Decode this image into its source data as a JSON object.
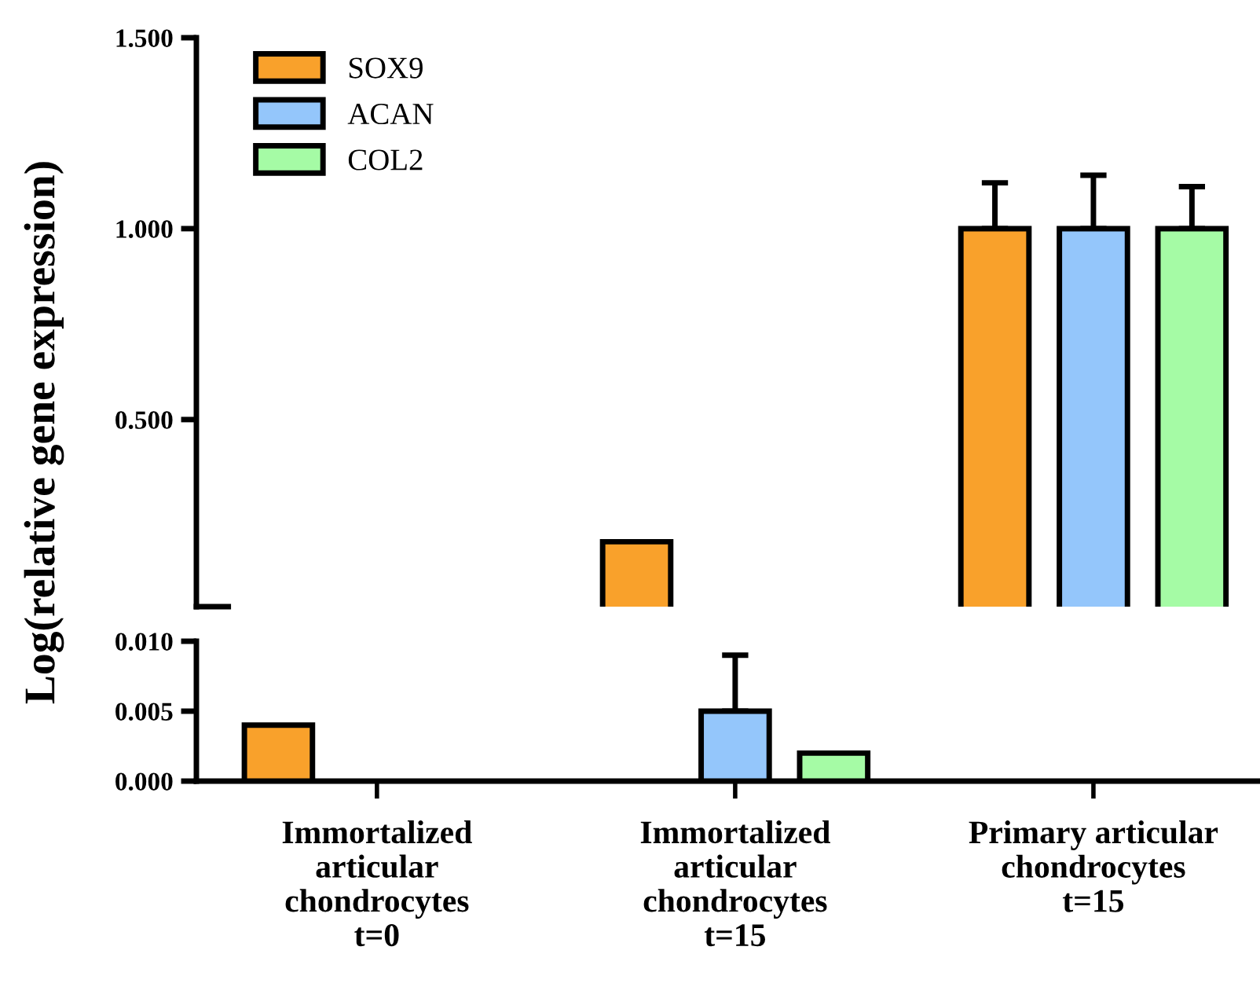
{
  "chart_data": [
    {
      "type": "bar",
      "categories": [
        "Immortalized\narticular\nchondrocytes\nt=0",
        "Immortalized\narticular\nchondrocytes\nt=15",
        "Primary articular\nchondrocytes\nt=15"
      ],
      "ylabel": "Log(relative gene expression)",
      "ylim": [
        0.01,
        1.5
      ],
      "yticks": [
        {
          "value": 0.5,
          "label": "0.500"
        },
        {
          "value": 1.0,
          "label": "1.000"
        },
        {
          "value": 1.5,
          "label": "1.500"
        }
      ],
      "tick_labels": "y",
      "legend": "top left",
      "grid": false,
      "series": [
        {
          "name": "SOX9",
          "color": "#f9a12b",
          "values": [
            null,
            0.18,
            1.0
          ],
          "errors": [
            null,
            null,
            [
              1.0,
              1.12
            ]
          ]
        },
        {
          "name": "ACAN",
          "color": "#94c6fb",
          "values": [
            null,
            null,
            1.0
          ],
          "errors": [
            null,
            null,
            [
              1.0,
              1.14
            ]
          ]
        },
        {
          "name": "COL2",
          "color": "#a5fba5",
          "values": [
            null,
            null,
            1.0
          ],
          "errors": [
            null,
            null,
            [
              1.0,
              1.11
            ]
          ]
        }
      ]
    },
    {
      "type": "bar",
      "categories": [
        null,
        null,
        null
      ],
      "ylim": [
        0,
        0.01
      ],
      "yticks": [
        {
          "value": 0,
          "label": "0.000"
        },
        {
          "value": 0.005,
          "label": "0.005"
        },
        {
          "value": 0.01,
          "label": "0.010"
        }
      ],
      "grid": false,
      "series": [
        {
          "color": "#f9a12b",
          "values": [
            0.004,
            null,
            null
          ],
          "errors": [
            null,
            null,
            null
          ]
        },
        {
          "color": "#94c6fb",
          "values": [
            null,
            0.005,
            null
          ],
          "errors": [
            null,
            [
              0.005,
              0.009
            ],
            null
          ]
        },
        {
          "color": "#a5fba5",
          "values": [
            null,
            0.002,
            null
          ],
          "errors": [
            null,
            null,
            null
          ]
        }
      ]
    }
  ]
}
